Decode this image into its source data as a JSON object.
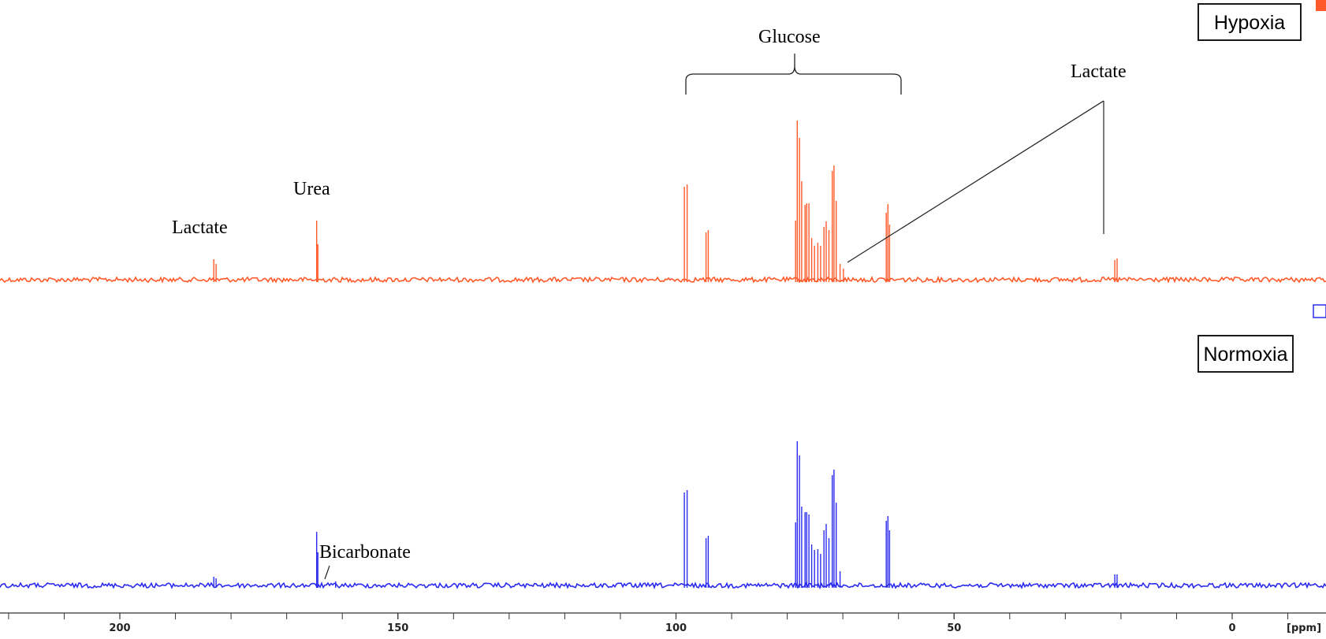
{
  "chart_data": {
    "type": "line",
    "subtype": "stacked-nmr-spectra",
    "x_axis": {
      "unit_label": "[ppm]",
      "reversed": true,
      "range": [
        221,
        -10
      ],
      "ticks": [
        200,
        150,
        100,
        50,
        0
      ]
    },
    "colors": {
      "hypoxia": "#ff5a2a",
      "normoxia": "#2b2bef"
    },
    "series": [
      {
        "name": "Hypoxia",
        "color": "#ff5a2a",
        "peaks": [
          {
            "ppm": 183.1,
            "height": 26
          },
          {
            "ppm": 182.7,
            "height": 20
          },
          {
            "ppm": 164.6,
            "height": 75
          },
          {
            "ppm": 164.4,
            "height": 45
          },
          {
            "ppm": 98.5,
            "height": 118
          },
          {
            "ppm": 98.0,
            "height": 121
          },
          {
            "ppm": 94.6,
            "height": 60
          },
          {
            "ppm": 94.2,
            "height": 63
          },
          {
            "ppm": 78.5,
            "height": 75
          },
          {
            "ppm": 78.2,
            "height": 202
          },
          {
            "ppm": 77.8,
            "height": 180
          },
          {
            "ppm": 77.4,
            "height": 125
          },
          {
            "ppm": 76.8,
            "height": 95
          },
          {
            "ppm": 76.5,
            "height": 97
          },
          {
            "ppm": 76.1,
            "height": 97
          },
          {
            "ppm": 75.6,
            "height": 53
          },
          {
            "ppm": 75.1,
            "height": 43
          },
          {
            "ppm": 74.5,
            "height": 47
          },
          {
            "ppm": 74.0,
            "height": 43
          },
          {
            "ppm": 73.4,
            "height": 67
          },
          {
            "ppm": 73.0,
            "height": 74
          },
          {
            "ppm": 72.5,
            "height": 63
          },
          {
            "ppm": 71.9,
            "height": 138
          },
          {
            "ppm": 71.6,
            "height": 145
          },
          {
            "ppm": 71.2,
            "height": 100
          },
          {
            "ppm": 70.5,
            "height": 20
          },
          {
            "ppm": 69.9,
            "height": 14
          },
          {
            "ppm": 62.2,
            "height": 85
          },
          {
            "ppm": 61.9,
            "height": 96
          },
          {
            "ppm": 61.6,
            "height": 70
          },
          {
            "ppm": 21.1,
            "height": 25
          },
          {
            "ppm": 20.7,
            "height": 27
          }
        ]
      },
      {
        "name": "Normoxia",
        "color": "#2b2bef",
        "peaks": [
          {
            "ppm": 183.1,
            "height": 11
          },
          {
            "ppm": 182.7,
            "height": 9
          },
          {
            "ppm": 164.6,
            "height": 68
          },
          {
            "ppm": 164.4,
            "height": 42
          },
          {
            "ppm": 161.2,
            "height": 5
          },
          {
            "ppm": 98.5,
            "height": 118
          },
          {
            "ppm": 98.0,
            "height": 121
          },
          {
            "ppm": 94.6,
            "height": 60
          },
          {
            "ppm": 94.2,
            "height": 63
          },
          {
            "ppm": 78.5,
            "height": 80
          },
          {
            "ppm": 78.2,
            "height": 183
          },
          {
            "ppm": 77.8,
            "height": 165
          },
          {
            "ppm": 77.4,
            "height": 100
          },
          {
            "ppm": 76.8,
            "height": 93
          },
          {
            "ppm": 76.5,
            "height": 93
          },
          {
            "ppm": 76.1,
            "height": 90
          },
          {
            "ppm": 75.6,
            "height": 52
          },
          {
            "ppm": 75.1,
            "height": 45
          },
          {
            "ppm": 74.5,
            "height": 46
          },
          {
            "ppm": 74.0,
            "height": 40
          },
          {
            "ppm": 73.4,
            "height": 70
          },
          {
            "ppm": 73.0,
            "height": 78
          },
          {
            "ppm": 72.5,
            "height": 60
          },
          {
            "ppm": 71.9,
            "height": 140
          },
          {
            "ppm": 71.6,
            "height": 147
          },
          {
            "ppm": 71.2,
            "height": 105
          },
          {
            "ppm": 70.5,
            "height": 18
          },
          {
            "ppm": 62.2,
            "height": 82
          },
          {
            "ppm": 61.9,
            "height": 88
          },
          {
            "ppm": 61.6,
            "height": 70
          },
          {
            "ppm": 21.1,
            "height": 14
          },
          {
            "ppm": 20.7,
            "height": 14
          }
        ]
      }
    ],
    "annotations": {
      "lactate_left": "Lactate",
      "urea": "Urea",
      "glucose": "Glucose",
      "lactate_right": "Lactate",
      "bicarbonate": "Bicarbonate"
    },
    "panel_labels": {
      "hypoxia": "Hypoxia",
      "normoxia": "Normoxia"
    }
  }
}
